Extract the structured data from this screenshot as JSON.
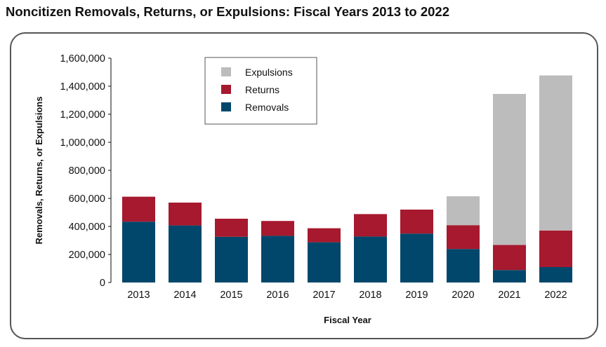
{
  "title": "Noncitizen Removals, Returns, or Expulsions: Fiscal Years 2013 to 2022",
  "chart_data": {
    "type": "bar",
    "stacked": true,
    "title": "Noncitizen Removals, Returns, or Expulsions: Fiscal Years 2013 to 2022",
    "xlabel": "Fiscal Year",
    "ylabel": "Removals, Returns, or Expulsions",
    "ylim": [
      0,
      1600000
    ],
    "yticks": [
      0,
      200000,
      400000,
      600000,
      800000,
      1000000,
      1200000,
      1400000,
      1600000
    ],
    "ytick_labels": [
      "0",
      "200,000",
      "400,000",
      "600,000",
      "800,000",
      "1,000,000",
      "1,200,000",
      "1,400,000",
      "1,600,000"
    ],
    "categories": [
      "2013",
      "2014",
      "2015",
      "2016",
      "2017",
      "2018",
      "2019",
      "2020",
      "2021",
      "2022"
    ],
    "legend_position": "top-center",
    "series": [
      {
        "name": "Removals",
        "color": "#00476b",
        "values": [
          434000,
          407000,
          326000,
          333000,
          287000,
          328000,
          349000,
          239000,
          89000,
          110000
        ]
      },
      {
        "name": "Returns",
        "color": "#a6192e",
        "values": [
          178000,
          163000,
          129000,
          106000,
          100000,
          160000,
          171000,
          170000,
          179000,
          261000
        ]
      },
      {
        "name": "Expulsions",
        "color": "#bcbcbc",
        "values": [
          0,
          0,
          0,
          0,
          0,
          0,
          0,
          206000,
          1077000,
          1106000
        ]
      }
    ],
    "legend_order": [
      "Expulsions",
      "Returns",
      "Removals"
    ]
  }
}
